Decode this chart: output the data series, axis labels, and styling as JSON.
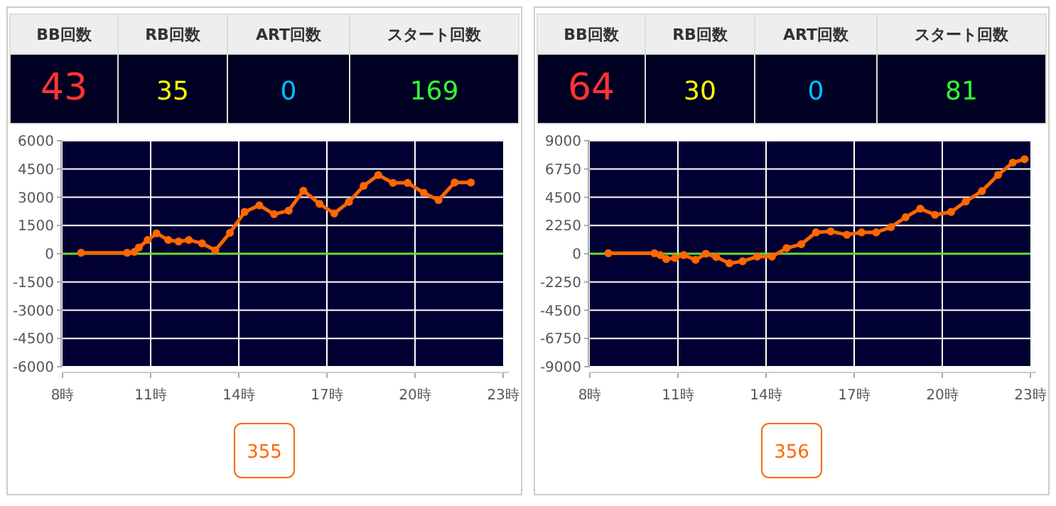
{
  "chart_data": [
    {
      "type": "other",
      "categories": [
        "BB回数",
        "RB回数",
        "ART回数",
        "スタート回数"
      ],
      "values": [
        43,
        35,
        0,
        169
      ],
      "data_labels": true
    },
    {
      "type": "line",
      "xlim": [
        8,
        23
      ],
      "xticks": [
        {
          "value": 8,
          "label": "8時"
        },
        {
          "value": 11,
          "label": "11時"
        },
        {
          "value": 14,
          "label": "14時"
        },
        {
          "value": 17,
          "label": "17時"
        },
        {
          "value": 20,
          "label": "20時"
        },
        {
          "value": 23,
          "label": "23時"
        }
      ],
      "ylim": [
        -6000,
        6000
      ],
      "yticks": [
        6000,
        4500,
        3000,
        1500,
        0,
        -1500,
        -3000,
        -4500,
        -6000
      ],
      "grid": true,
      "marker": "circle",
      "line_style": "solid",
      "ref_lines": [
        {
          "axis": "y",
          "value": 0,
          "color": "#66dd33"
        }
      ],
      "annotations": [
        "355"
      ],
      "series": [
        {
          "color": "#ff6600",
          "x": [
            8.63,
            10.2,
            10.45,
            10.6,
            10.9,
            11.2,
            11.6,
            11.95,
            12.3,
            12.75,
            13.2,
            13.7,
            14.2,
            14.7,
            15.2,
            15.7,
            16.2,
            16.75,
            17.25,
            17.75,
            18.25,
            18.75,
            19.25,
            19.75,
            20.3,
            20.8,
            21.35,
            21.9
          ],
          "values": [
            50,
            50,
            100,
            330,
            730,
            1080,
            730,
            650,
            730,
            550,
            180,
            1110,
            2220,
            2570,
            2100,
            2290,
            3350,
            2650,
            2140,
            2750,
            3600,
            4180,
            3760,
            3760,
            3230,
            2850,
            3780,
            3780
          ]
        }
      ]
    },
    {
      "type": "other",
      "categories": [
        "BB回数",
        "RB回数",
        "ART回数",
        "スタート回数"
      ],
      "values": [
        64,
        30,
        0,
        81
      ],
      "data_labels": true
    },
    {
      "type": "line",
      "xlim": [
        8,
        23
      ],
      "xticks": [
        {
          "value": 8,
          "label": "8時"
        },
        {
          "value": 11,
          "label": "11時"
        },
        {
          "value": 14,
          "label": "14時"
        },
        {
          "value": 17,
          "label": "17時"
        },
        {
          "value": 20,
          "label": "20時"
        },
        {
          "value": 23,
          "label": "23時"
        }
      ],
      "ylim": [
        -9000,
        9000
      ],
      "yticks": [
        9000,
        6750,
        4500,
        2250,
        0,
        -2250,
        -4500,
        -6750,
        -9000
      ],
      "grid": true,
      "marker": "circle",
      "line_style": "solid",
      "ref_lines": [
        {
          "axis": "y",
          "value": 0,
          "color": "#66dd33"
        }
      ],
      "annotations": [
        "356"
      ],
      "series": [
        {
          "color": "#ff6600",
          "x": [
            8.63,
            10.2,
            10.4,
            10.6,
            10.9,
            11.2,
            11.6,
            11.95,
            12.3,
            12.75,
            13.2,
            13.7,
            14.2,
            14.7,
            15.2,
            15.7,
            16.2,
            16.75,
            17.25,
            17.75,
            18.25,
            18.75,
            19.25,
            19.75,
            20.3,
            20.8,
            21.35,
            21.9,
            22.4,
            22.8
          ],
          "values": [
            40,
            40,
            -110,
            -420,
            -340,
            -110,
            -490,
            0,
            -260,
            -760,
            -600,
            -230,
            -230,
            450,
            760,
            1700,
            1780,
            1510,
            1700,
            1700,
            2120,
            2910,
            3590,
            3100,
            3330,
            4160,
            4990,
            6280,
            7260,
            7520
          ]
        }
      ]
    }
  ]
}
